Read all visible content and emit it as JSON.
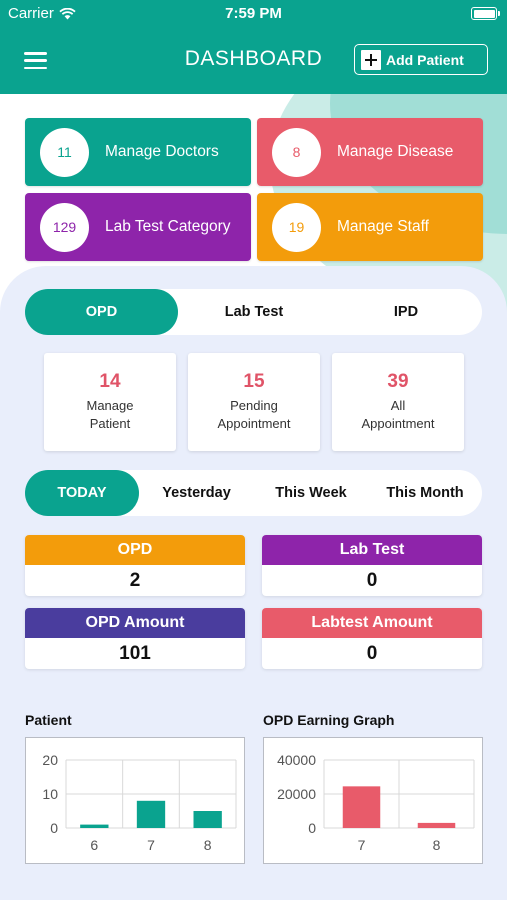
{
  "status_bar": {
    "carrier": "Carrier",
    "time": "7:59 PM"
  },
  "header": {
    "title": "DASHBOARD",
    "add_patient_label": "Add Patient"
  },
  "tiles": [
    {
      "count": "11",
      "label": "Manage Doctors",
      "color": "#0aa38f"
    },
    {
      "count": "8",
      "label": "Manage Disease",
      "color": "#e85b6a"
    },
    {
      "count": "129",
      "label": "Lab Test Category",
      "color": "#8e24aa"
    },
    {
      "count": "19",
      "label": "Manage Staff",
      "color": "#f39c0b"
    }
  ],
  "department_tabs": [
    "OPD",
    "Lab Test",
    "IPD"
  ],
  "stats": [
    {
      "value": "14",
      "label": "Manage\nPatient"
    },
    {
      "value": "15",
      "label": "Pending\nAppointment"
    },
    {
      "value": "39",
      "label": "All\nAppointment"
    }
  ],
  "period_tabs": [
    "TODAY",
    "Yesterday",
    "This Week",
    "This Month"
  ],
  "summary": [
    {
      "title": "OPD",
      "value": "2",
      "color": "#f39c0b"
    },
    {
      "title": "Lab Test",
      "value": "0",
      "color": "#8e24aa"
    },
    {
      "title": "OPD Amount",
      "value": "101",
      "color": "#4a3d9e"
    },
    {
      "title": "Labtest Amount",
      "value": "0",
      "color": "#e85b6a"
    }
  ],
  "charts": {
    "patient_title": "Patient",
    "opd_title": "OPD Earning Graph"
  },
  "chart_data": [
    {
      "type": "bar",
      "title": "Patient",
      "categories": [
        "6",
        "7",
        "8"
      ],
      "values": [
        1,
        8,
        5
      ],
      "ylim": [
        0,
        20
      ],
      "yticks": [
        "0",
        "10",
        "20"
      ],
      "grid": true,
      "color": "#0aa38f"
    },
    {
      "type": "bar",
      "title": "OPD Earning Graph",
      "categories": [
        "7",
        "8"
      ],
      "values": [
        24500,
        3000
      ],
      "ylim": [
        0,
        40000
      ],
      "yticks": [
        "0",
        "20000",
        "40000"
      ],
      "grid": true,
      "color": "#e85b6a"
    }
  ]
}
